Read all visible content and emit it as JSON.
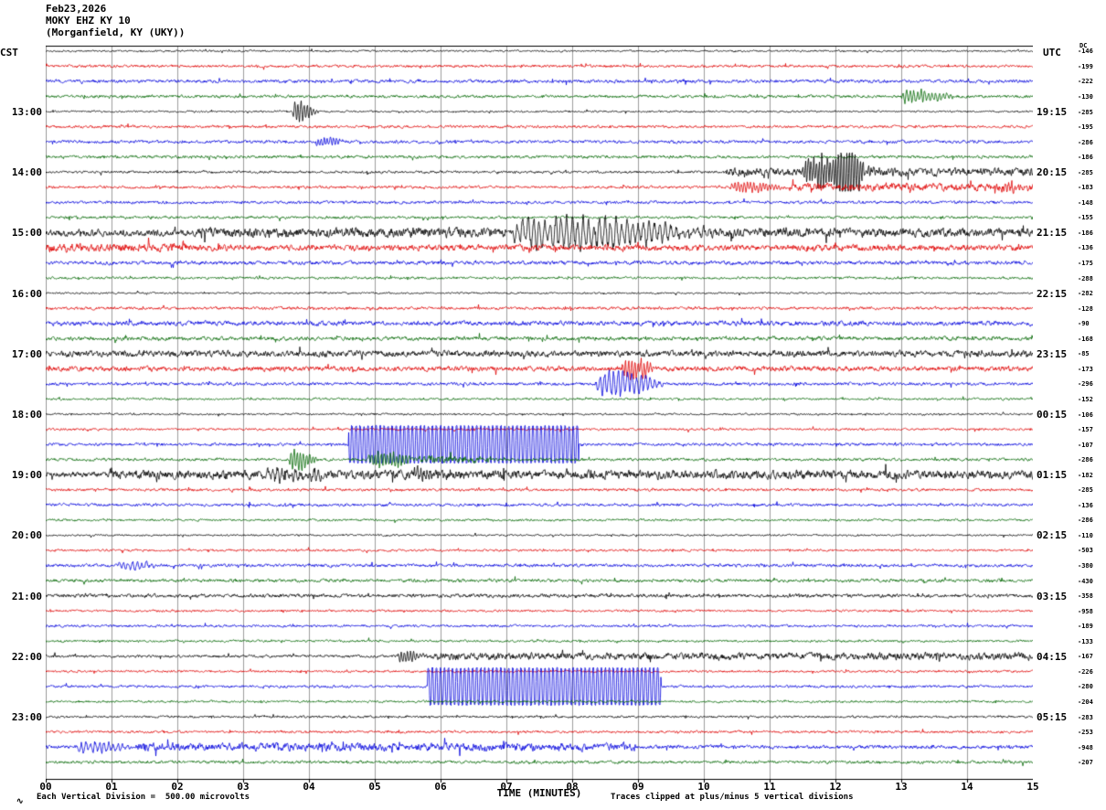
{
  "header": {
    "date": "Feb23,2026",
    "station": "MOKY EHZ KY 10",
    "location": "(Morganfield, KY (UKY))",
    "left_tz": "CST",
    "right_tz": "UTC",
    "dc_label": "DC"
  },
  "footer": {
    "division_note": "Each Vertical Division =  500.00 microvolts",
    "axis_title": "TIME (MINUTES)",
    "clip_note": "Traces clipped at plus/minus 5 vertical divisions"
  },
  "icons": {
    "logo": "∿"
  },
  "x_axis": {
    "ticks": [
      "00",
      "01",
      "02",
      "03",
      "04",
      "05",
      "06",
      "07",
      "08",
      "09",
      "10",
      "11",
      "12",
      "13",
      "14",
      "15"
    ]
  },
  "colors": {
    "trace_cycle": [
      "#000000",
      "#e00000",
      "#0000dd",
      "#006600"
    ],
    "grid": "#9e9e9e",
    "background": "#ffffff"
  },
  "left_labels": [
    {
      "row": 4,
      "label": "13:00"
    },
    {
      "row": 8,
      "label": "14:00"
    },
    {
      "row": 12,
      "label": "15:00"
    },
    {
      "row": 16,
      "label": "16:00"
    },
    {
      "row": 20,
      "label": "17:00"
    },
    {
      "row": 24,
      "label": "18:00"
    },
    {
      "row": 28,
      "label": "19:00"
    },
    {
      "row": 32,
      "label": "20:00"
    },
    {
      "row": 36,
      "label": "21:00"
    },
    {
      "row": 40,
      "label": "22:00"
    },
    {
      "row": 44,
      "label": "23:00"
    }
  ],
  "right_labels": [
    {
      "row": 4,
      "label": "19:15"
    },
    {
      "row": 8,
      "label": "20:15"
    },
    {
      "row": 12,
      "label": "21:15"
    },
    {
      "row": 16,
      "label": "22:15"
    },
    {
      "row": 20,
      "label": "23:15"
    },
    {
      "row": 24,
      "label": "00:15"
    },
    {
      "row": 28,
      "label": "01:15"
    },
    {
      "row": 32,
      "label": "02:15"
    },
    {
      "row": 36,
      "label": "03:15"
    },
    {
      "row": 40,
      "label": "04:15"
    },
    {
      "row": 44,
      "label": "05:15"
    }
  ],
  "dc_offsets": [
    "-146",
    "-199",
    "-222",
    "-130",
    "-285",
    "-195",
    "-286",
    "-186",
    "-285",
    "-183",
    "-148",
    "-155",
    "-186",
    "-136",
    "-175",
    "-288",
    "-282",
    "-128",
    "-90",
    "-168",
    "-85",
    "-173",
    "-296",
    "-152",
    "-106",
    "-157",
    "-107",
    "-286",
    "-182",
    "-285",
    "-136",
    "-286",
    "-110",
    "-503",
    "-380",
    "-430",
    "-358",
    "-958",
    "-189",
    "-133",
    "-167",
    "-226",
    "-280",
    "-204",
    "-283",
    "-253",
    "-948",
    "-207"
  ],
  "chart_data": {
    "type": "line",
    "kind": "helicorder",
    "title": "MOKY EHZ KY 10 (Morganfield, KY (UKY)) Feb23,2026",
    "xlabel": "TIME (MINUTES)",
    "x_range_minutes": [
      0,
      15
    ],
    "minutes_per_row": 15,
    "rows_per_hour": 4,
    "first_row_time_cst": "12:00",
    "clip_divisions": 5,
    "microvolts_per_division": 500.0,
    "rows": [
      {
        "t": "12:00",
        "c": 0,
        "a": 0.9,
        "e": []
      },
      {
        "t": "12:15",
        "c": 1,
        "a": 1.3,
        "e": []
      },
      {
        "t": "12:30",
        "c": 2,
        "a": 1.6,
        "e": []
      },
      {
        "t": "12:45",
        "c": 3,
        "a": 1.4,
        "e": [
          {
            "k": "burst",
            "t0": 13.0,
            "t1": 13.9,
            "a": 6,
            "p": 4.0
          }
        ]
      },
      {
        "t": "13:00",
        "c": 0,
        "a": 0.9,
        "e": [
          {
            "k": "burst",
            "t0": 3.75,
            "t1": 4.15,
            "a": 9
          }
        ]
      },
      {
        "t": "13:15",
        "c": 1,
        "a": 1.3,
        "e": []
      },
      {
        "t": "13:30",
        "c": 2,
        "a": 1.5,
        "e": [
          {
            "k": "burst",
            "t0": 4.1,
            "t1": 4.6,
            "a": 4
          }
        ]
      },
      {
        "t": "13:45",
        "c": 3,
        "a": 1.4,
        "e": []
      },
      {
        "t": "14:00",
        "c": 0,
        "a": 1.2,
        "e": [
          {
            "k": "hi",
            "t0": 10.3,
            "t1": 15,
            "a": 2.5
          },
          {
            "k": "burst",
            "t0": 11.5,
            "t1": 12.7,
            "a": 13,
            "p": 3.0
          },
          {
            "k": "burst",
            "t0": 12.0,
            "t1": 12.45,
            "a": 19,
            "p": 3.0
          }
        ]
      },
      {
        "t": "14:15",
        "c": 1,
        "a": 1.3,
        "e": [
          {
            "k": "burst",
            "t0": 10.4,
            "t1": 11.3,
            "a": 5
          },
          {
            "k": "hi",
            "t0": 11.3,
            "t1": 15,
            "a": 2.2
          },
          {
            "k": "burst",
            "t0": 14.55,
            "t1": 15,
            "a": 4.5
          }
        ]
      },
      {
        "t": "14:30",
        "c": 2,
        "a": 1.4,
        "e": []
      },
      {
        "t": "14:45",
        "c": 3,
        "a": 1.3,
        "e": []
      },
      {
        "t": "15:00",
        "c": 0,
        "a": 3.2,
        "e": [
          {
            "k": "hi",
            "t0": 2.3,
            "t1": 7.0,
            "a": 1.5
          },
          {
            "k": "burst",
            "t0": 7.1,
            "t1": 10.4,
            "a": 15,
            "p": 6.0
          },
          {
            "k": "hi",
            "t0": 10.4,
            "t1": 15,
            "a": 1.0
          }
        ]
      },
      {
        "t": "15:15",
        "c": 1,
        "a": 2.8,
        "e": [
          {
            "k": "hi",
            "t0": 0,
            "t1": 2.2,
            "a": 1.2
          }
        ]
      },
      {
        "t": "15:30",
        "c": 2,
        "a": 1.8,
        "e": []
      },
      {
        "t": "15:45",
        "c": 3,
        "a": 1.2,
        "e": []
      },
      {
        "t": "16:00",
        "c": 0,
        "a": 0.9,
        "e": []
      },
      {
        "t": "16:15",
        "c": 1,
        "a": 1.4,
        "e": []
      },
      {
        "t": "16:30",
        "c": 2,
        "a": 2.2,
        "e": []
      },
      {
        "t": "16:45",
        "c": 3,
        "a": 1.9,
        "e": []
      },
      {
        "t": "17:00",
        "c": 0,
        "a": 3.0,
        "e": []
      },
      {
        "t": "17:15",
        "c": 1,
        "a": 2.4,
        "e": [
          {
            "k": "burst",
            "t0": 8.75,
            "t1": 9.35,
            "a": 9
          }
        ]
      },
      {
        "t": "17:30",
        "c": 2,
        "a": 1.5,
        "e": [
          {
            "k": "burst",
            "t0": 8.35,
            "t1": 9.45,
            "a": 12,
            "p": 5.0
          }
        ]
      },
      {
        "t": "17:45",
        "c": 3,
        "a": 1.1,
        "e": []
      },
      {
        "t": "18:00",
        "c": 0,
        "a": 0.9,
        "e": []
      },
      {
        "t": "18:15",
        "c": 1,
        "a": 1.1,
        "e": []
      },
      {
        "t": "18:30",
        "c": 2,
        "a": 1.4,
        "e": [
          {
            "k": "clip",
            "t0": 4.6,
            "t1": 8.1,
            "a": 20
          }
        ]
      },
      {
        "t": "18:45",
        "c": 3,
        "a": 1.4,
        "e": [
          {
            "k": "burst",
            "t0": 3.7,
            "t1": 4.15,
            "a": 10
          },
          {
            "k": "burst",
            "t0": 4.9,
            "t1": 5.7,
            "a": 8
          },
          {
            "k": "hi",
            "t0": 5.7,
            "t1": 6.6,
            "a": 2
          }
        ]
      },
      {
        "t": "19:00",
        "c": 0,
        "a": 2.6,
        "e": [
          {
            "k": "hi",
            "t0": 1.0,
            "t1": 15,
            "a": 1.6
          },
          {
            "k": "burst",
            "t0": 3.3,
            "t1": 4.4,
            "a": 5,
            "p": 5.0
          },
          {
            "k": "burst",
            "t0": 5.5,
            "t1": 6.2,
            "a": 4
          }
        ]
      },
      {
        "t": "19:15",
        "c": 1,
        "a": 1.3,
        "e": []
      },
      {
        "t": "19:30",
        "c": 2,
        "a": 1.4,
        "e": []
      },
      {
        "t": "19:45",
        "c": 3,
        "a": 1.1,
        "e": []
      },
      {
        "t": "20:00",
        "c": 0,
        "a": 0.9,
        "e": []
      },
      {
        "t": "20:15",
        "c": 1,
        "a": 1.1,
        "e": []
      },
      {
        "t": "20:30",
        "c": 2,
        "a": 1.5,
        "e": [
          {
            "k": "burst",
            "t0": 1.1,
            "t1": 1.8,
            "a": 3.5,
            "p": 5.0
          }
        ]
      },
      {
        "t": "20:45",
        "c": 3,
        "a": 1.6,
        "e": []
      },
      {
        "t": "21:00",
        "c": 0,
        "a": 1.7,
        "e": []
      },
      {
        "t": "21:15",
        "c": 1,
        "a": 1.1,
        "e": []
      },
      {
        "t": "21:30",
        "c": 2,
        "a": 1.2,
        "e": []
      },
      {
        "t": "21:45",
        "c": 3,
        "a": 1.1,
        "e": []
      },
      {
        "t": "22:00",
        "c": 0,
        "a": 1.3,
        "e": [
          {
            "k": "burst",
            "t0": 5.35,
            "t1": 5.85,
            "a": 5
          },
          {
            "k": "hi",
            "t0": 5.85,
            "t1": 15,
            "a": 2.2
          }
        ]
      },
      {
        "t": "22:15",
        "c": 1,
        "a": 1.1,
        "e": []
      },
      {
        "t": "22:30",
        "c": 2,
        "a": 1.3,
        "e": [
          {
            "k": "clip",
            "t0": 5.8,
            "t1": 9.35,
            "a": 20
          }
        ]
      },
      {
        "t": "22:45",
        "c": 3,
        "a": 1.1,
        "e": []
      },
      {
        "t": "23:00",
        "c": 0,
        "a": 1.1,
        "e": []
      },
      {
        "t": "23:15",
        "c": 1,
        "a": 1.2,
        "e": []
      },
      {
        "t": "23:30",
        "c": 2,
        "a": 1.7,
        "e": [
          {
            "k": "burst",
            "t0": 0.45,
            "t1": 1.35,
            "a": 5,
            "p": 5.0
          },
          {
            "k": "hi",
            "t0": 1.35,
            "t1": 9.0,
            "a": 2.0
          }
        ]
      },
      {
        "t": "23:45",
        "c": 3,
        "a": 1.4,
        "e": []
      }
    ]
  }
}
